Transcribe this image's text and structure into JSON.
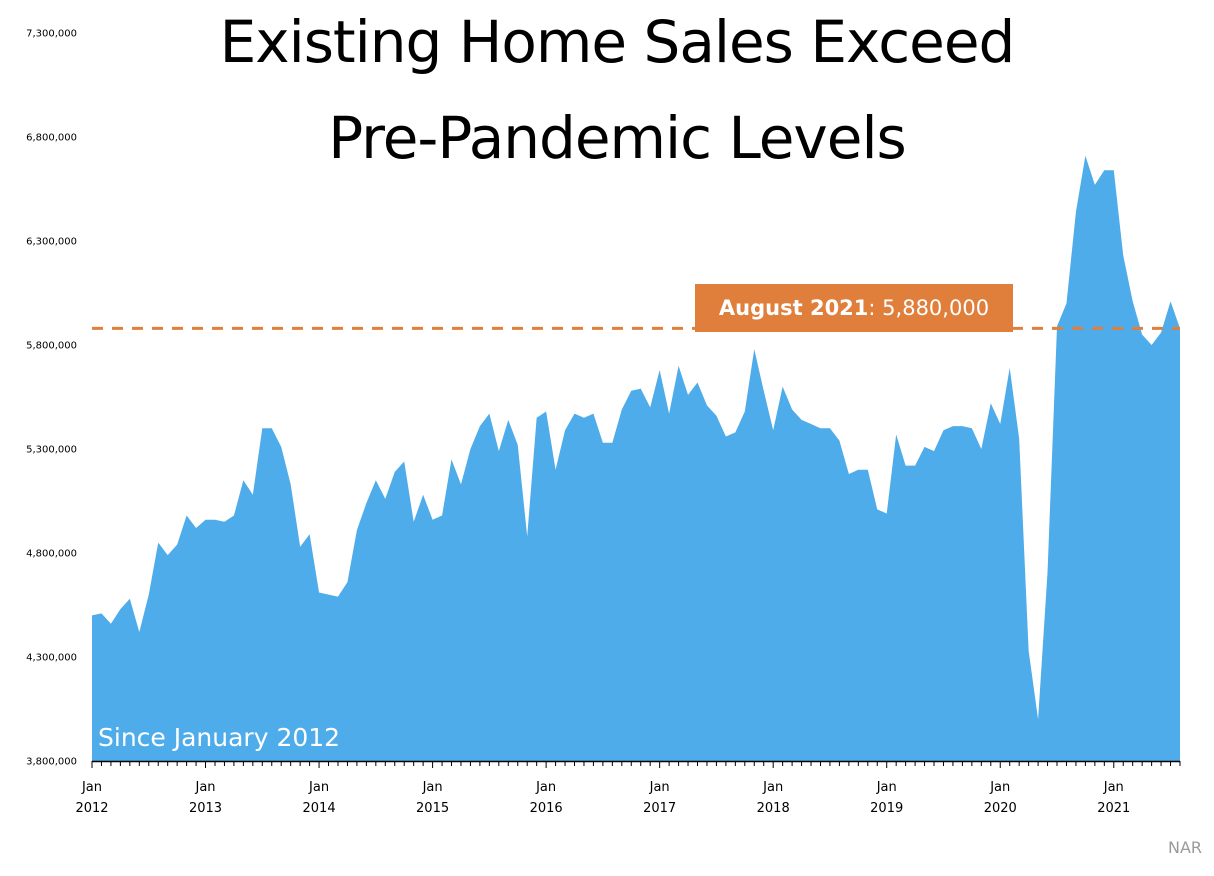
{
  "title_line1": "Existing Home Sales Exceed",
  "title_line2": "Pre-Pandemic Levels",
  "annotation": {
    "label": "August 2021",
    "value": "5,880,000",
    "color": "#e07f3c"
  },
  "subtitle": "Since January 2012",
  "source": "NAR",
  "chart_data": {
    "type": "area",
    "title": "Existing Home Sales Exceed Pre-Pandemic Levels",
    "xlabel": "",
    "ylabel": "",
    "ylim": [
      3800000,
      7300000
    ],
    "yticks": [
      3800000,
      4300000,
      4800000,
      5300000,
      5800000,
      6300000,
      6800000,
      7300000
    ],
    "ytick_labels": [
      "3,800,000",
      "4,300,000",
      "4,800,000",
      "5,300,000",
      "5,800,000",
      "6,300,000",
      "6,800,000",
      "7,300,000"
    ],
    "xtick_labels": [
      [
        "Jan",
        "2012"
      ],
      [
        "Jan",
        "2013"
      ],
      [
        "Jan",
        "2014"
      ],
      [
        "Jan",
        "2015"
      ],
      [
        "Jan",
        "2016"
      ],
      [
        "Jan",
        "2017"
      ],
      [
        "Jan",
        "2018"
      ],
      [
        "Jan",
        "2019"
      ],
      [
        "Jan",
        "2020"
      ],
      [
        "Jan",
        "2021"
      ]
    ],
    "start": "2012-01",
    "end": "2021-08",
    "frequency": "monthly",
    "fill_color": "#4facea",
    "reference_line": {
      "value": 5880000,
      "style": "dashed",
      "color": "#e07f3c"
    },
    "grid": false,
    "values": [
      4500000,
      4510000,
      4460000,
      4530000,
      4580000,
      4420000,
      4600000,
      4850000,
      4790000,
      4840000,
      4980000,
      4920000,
      4960000,
      4960000,
      4950000,
      4980000,
      5150000,
      5080000,
      5400000,
      5400000,
      5310000,
      5130000,
      4830000,
      4890000,
      4610000,
      4600000,
      4590000,
      4660000,
      4910000,
      5040000,
      5150000,
      5060000,
      5190000,
      5240000,
      4950000,
      5080000,
      4960000,
      4980000,
      5250000,
      5130000,
      5300000,
      5410000,
      5470000,
      5290000,
      5440000,
      5320000,
      4880000,
      5450000,
      5480000,
      5200000,
      5390000,
      5470000,
      5450000,
      5470000,
      5330000,
      5330000,
      5490000,
      5580000,
      5590000,
      5500000,
      5680000,
      5470000,
      5700000,
      5560000,
      5620000,
      5510000,
      5460000,
      5360000,
      5380000,
      5480000,
      5780000,
      5580000,
      5390000,
      5600000,
      5490000,
      5440000,
      5420000,
      5400000,
      5400000,
      5340000,
      5180000,
      5200000,
      5200000,
      5010000,
      4990000,
      5370000,
      5220000,
      5220000,
      5310000,
      5290000,
      5390000,
      5410000,
      5410000,
      5400000,
      5300000,
      5520000,
      5420000,
      5690000,
      5350000,
      4330000,
      4000000,
      4710000,
      5890000,
      6000000,
      6440000,
      6710000,
      6570000,
      6640000,
      6640000,
      6230000,
      6010000,
      5850000,
      5800000,
      5860000,
      6010000,
      5880000
    ]
  }
}
